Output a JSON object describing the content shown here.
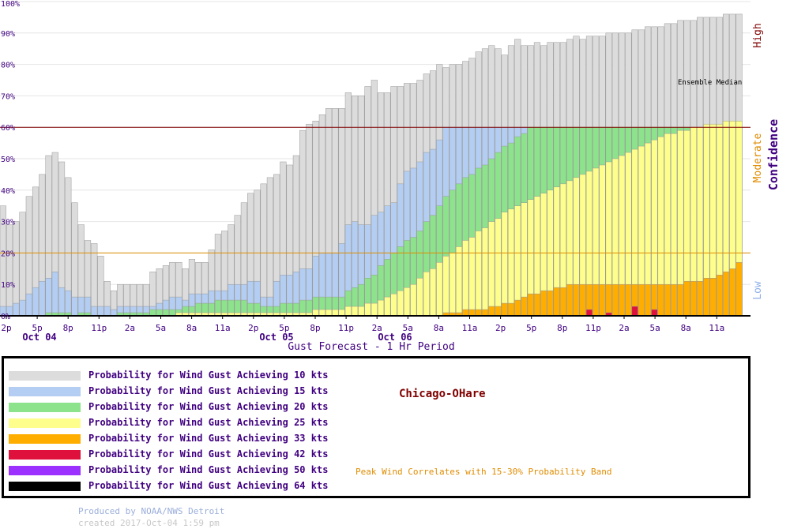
{
  "chart_data": {
    "type": "bar",
    "stacked": "overlapping",
    "xlabel": "Gust Forecast - 1 Hr Period",
    "ylabel": "",
    "ylim": [
      0,
      100
    ],
    "y_ticks": [
      "0%",
      "10%",
      "20%",
      "30%",
      "40%",
      "50%",
      "60%",
      "70%",
      "80%",
      "90%",
      "100%"
    ],
    "x_tick_labels": [
      "2p",
      "5p",
      "8p",
      "11p",
      "2a",
      "5a",
      "8a",
      "11a",
      "2p",
      "5p",
      "8p",
      "11p",
      "2a",
      "5a",
      "8a",
      "11a",
      "2p",
      "5p",
      "8p",
      "11p",
      "2a",
      "5a",
      "8a",
      "11a"
    ],
    "date_labels": [
      "Oct 04",
      "Oct 05",
      "Oct 06"
    ],
    "confidence": {
      "title": "Confidence",
      "high": "High",
      "moderate": "Moderate",
      "low": "Low",
      "moderate_threshold": 20,
      "high_threshold": 60
    },
    "annotation": "Ensemble Median",
    "colors": {
      "10": "#dcdcdc",
      "15": "#b3cef2",
      "20": "#8ce38c",
      "25": "#fefe8c",
      "33": "#ffae00",
      "42": "#e0103c",
      "50": "#9b30ff",
      "64": "#000000"
    },
    "series": [
      {
        "name": "10 kts",
        "values": [
          35,
          29,
          30,
          33,
          38,
          41,
          45,
          51,
          52,
          49,
          44,
          36,
          29,
          24,
          23,
          19,
          11,
          8,
          10,
          10,
          10,
          10,
          10,
          14,
          15,
          16,
          17,
          17,
          15,
          18,
          17,
          17,
          21,
          26,
          27,
          29,
          32,
          36,
          39,
          40,
          42,
          44,
          45,
          49,
          48,
          51,
          59,
          61,
          62,
          64,
          66,
          66,
          66,
          71,
          70,
          70,
          73,
          75,
          71,
          71,
          73,
          73,
          74,
          74,
          75,
          77,
          78,
          80,
          79,
          80,
          80,
          81,
          82,
          84,
          85,
          86,
          85,
          83,
          86,
          88,
          86,
          86,
          87,
          86,
          87,
          87,
          87,
          88,
          89,
          88,
          89,
          89,
          89,
          90,
          90,
          90,
          90,
          91,
          91,
          92,
          92,
          92,
          93,
          93,
          94,
          94,
          94,
          95,
          95,
          95,
          95,
          96,
          96,
          96
        ]
      },
      {
        "name": "15 kts",
        "values": [
          3,
          3,
          4,
          5,
          7,
          9,
          11,
          12,
          14,
          9,
          8,
          6,
          6,
          6,
          3,
          3,
          3,
          2,
          3,
          3,
          3,
          3,
          3,
          3,
          4,
          5,
          6,
          6,
          5,
          7,
          7,
          7,
          8,
          8,
          8,
          10,
          10,
          10,
          11,
          11,
          6,
          6,
          11,
          13,
          13,
          14,
          15,
          15,
          19,
          20,
          20,
          20,
          23,
          29,
          30,
          29,
          29,
          32,
          33,
          35,
          36,
          42,
          46,
          47,
          49,
          52,
          53,
          56,
          60,
          60,
          60,
          60,
          60,
          60,
          60,
          60,
          60,
          60,
          60,
          60,
          60,
          60,
          60,
          60,
          60,
          60,
          60,
          60,
          60,
          60,
          60,
          60,
          60,
          60,
          60,
          60,
          60,
          60,
          60,
          60,
          60,
          60,
          60,
          60,
          60,
          60,
          60,
          60,
          60,
          60,
          60,
          60,
          60,
          60
        ]
      },
      {
        "name": "20 kts",
        "values": [
          0,
          0,
          0,
          0,
          0,
          0,
          0,
          1,
          1,
          1,
          1,
          0,
          1,
          1,
          0,
          0,
          0,
          0,
          1,
          1,
          1,
          1,
          1,
          2,
          2,
          2,
          2,
          2,
          3,
          3,
          4,
          4,
          4,
          5,
          5,
          5,
          5,
          5,
          4,
          4,
          3,
          3,
          3,
          4,
          4,
          4,
          5,
          5,
          6,
          6,
          6,
          6,
          6,
          8,
          9,
          10,
          12,
          13,
          16,
          18,
          20,
          22,
          24,
          25,
          27,
          30,
          32,
          35,
          38,
          40,
          42,
          44,
          45,
          47,
          48,
          50,
          52,
          54,
          55,
          57,
          58,
          60,
          60,
          60,
          60,
          60,
          60,
          60,
          60,
          60,
          60,
          60,
          60,
          60,
          60,
          60,
          60,
          60,
          60,
          60,
          60,
          60,
          60,
          60,
          60,
          60,
          60,
          60,
          60,
          60,
          60,
          60,
          60,
          60
        ]
      },
      {
        "name": "25 kts",
        "values": [
          0,
          0,
          0,
          0,
          0,
          0,
          0,
          0,
          0,
          0,
          0,
          0,
          0,
          0,
          0,
          0,
          0,
          0,
          0,
          0,
          0,
          0,
          0,
          0,
          0,
          0,
          0,
          1,
          1,
          1,
          1,
          1,
          1,
          1,
          1,
          1,
          1,
          1,
          1,
          1,
          1,
          1,
          1,
          1,
          1,
          1,
          1,
          1,
          2,
          2,
          2,
          2,
          2,
          3,
          3,
          3,
          4,
          4,
          5,
          6,
          7,
          8,
          9,
          10,
          12,
          14,
          15,
          17,
          19,
          20,
          22,
          24,
          25,
          27,
          28,
          30,
          31,
          33,
          34,
          35,
          36,
          37,
          38,
          39,
          40,
          41,
          42,
          43,
          44,
          45,
          46,
          47,
          48,
          49,
          50,
          51,
          52,
          53,
          54,
          55,
          56,
          57,
          58,
          58,
          59,
          59,
          60,
          60,
          61,
          61,
          61,
          62,
          62,
          62
        ]
      },
      {
        "name": "33 kts",
        "values": [
          0,
          0,
          0,
          0,
          0,
          0,
          0,
          0,
          0,
          0,
          0,
          0,
          0,
          0,
          0,
          0,
          0,
          0,
          0,
          0,
          0,
          0,
          0,
          0,
          0,
          0,
          0,
          0,
          0,
          0,
          0,
          0,
          0,
          0,
          0,
          0,
          0,
          0,
          0,
          0,
          0,
          0,
          0,
          0,
          0,
          0,
          0,
          0,
          0,
          0,
          0,
          0,
          0,
          0,
          0,
          0,
          0,
          0,
          0,
          0,
          0,
          0,
          0,
          0,
          0,
          0,
          0,
          0,
          1,
          1,
          1,
          2,
          2,
          2,
          2,
          3,
          3,
          4,
          4,
          5,
          6,
          7,
          7,
          8,
          8,
          9,
          9,
          10,
          10,
          10,
          10,
          10,
          10,
          10,
          10,
          10,
          10,
          10,
          10,
          10,
          10,
          10,
          10,
          10,
          10,
          11,
          11,
          11,
          12,
          12,
          13,
          14,
          15,
          17
        ]
      },
      {
        "name": "42 kts",
        "values": [
          0,
          0,
          0,
          0,
          0,
          0,
          0,
          0,
          0,
          0,
          0,
          0,
          0,
          0,
          0,
          0,
          0,
          0,
          0,
          0,
          0,
          0,
          0,
          0,
          0,
          0,
          0,
          0,
          0,
          0,
          0,
          0,
          0,
          0,
          0,
          0,
          0,
          0,
          0,
          0,
          0,
          0,
          0,
          0,
          0,
          0,
          0,
          0,
          0,
          0,
          0,
          0,
          0,
          0,
          0,
          0,
          0,
          0,
          0,
          0,
          0,
          0,
          0,
          0,
          0,
          0,
          0,
          0,
          0,
          0,
          0,
          0,
          0,
          0,
          0,
          0,
          0,
          0,
          0,
          0,
          0,
          0,
          0,
          0,
          0,
          0,
          0,
          0,
          0,
          0,
          2,
          0,
          0,
          1,
          0,
          0,
          0,
          3,
          0,
          0,
          2,
          0,
          0,
          0,
          0,
          0,
          0,
          0,
          0,
          0,
          0,
          0,
          0,
          0
        ]
      },
      {
        "name": "50 kts",
        "values": []
      },
      {
        "name": "64 kts",
        "values": []
      }
    ]
  },
  "legend": {
    "items": [
      {
        "label": "Probability for Wind Gust Achieving 10 kts",
        "color": "#dcdcdc"
      },
      {
        "label": "Probability for Wind Gust Achieving 15 kts",
        "color": "#b3cef2"
      },
      {
        "label": "Probability for Wind Gust Achieving 20 kts",
        "color": "#8ce38c"
      },
      {
        "label": "Probability for Wind Gust Achieving 25 kts",
        "color": "#fefe8c"
      },
      {
        "label": "Probability for Wind Gust Achieving 33 kts",
        "color": "#ffae00"
      },
      {
        "label": "Probability for Wind Gust Achieving 42 kts",
        "color": "#e0103c"
      },
      {
        "label": "Probability for Wind Gust Achieving 50 kts",
        "color": "#9b30ff"
      },
      {
        "label": "Probability for Wind Gust Achieving 64 kts",
        "color": "#000000"
      }
    ],
    "station": "Chicago-OHare",
    "peak_note": "Peak Wind Correlates with 15-30% Probability Band"
  },
  "footer": {
    "produced_by": "Produced by NOAA/NWS Detroit",
    "created": "created 2017-Oct-04 1:59 pm"
  }
}
